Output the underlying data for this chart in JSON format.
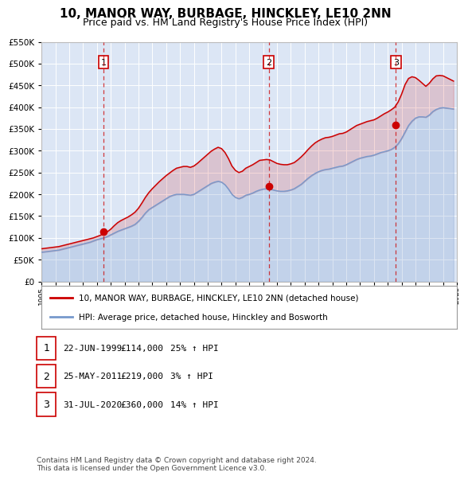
{
  "title": "10, MANOR WAY, BURBAGE, HINCKLEY, LE10 2NN",
  "subtitle": "Price paid vs. HM Land Registry's House Price Index (HPI)",
  "title_fontsize": 11,
  "subtitle_fontsize": 9,
  "bg_color": "#f0f0f0",
  "plot_bg_color": "#dce6f5",
  "grid_color": "#ffffff",
  "red_color": "#cc0000",
  "blue_color": "#7799cc",
  "ylim": [
    0,
    550000
  ],
  "yticks": [
    0,
    50000,
    100000,
    150000,
    200000,
    250000,
    300000,
    350000,
    400000,
    450000,
    500000,
    550000
  ],
  "sale_dates": [
    1999.47,
    2011.4,
    2020.58
  ],
  "sale_prices": [
    114000,
    219000,
    360000
  ],
  "sale_labels": [
    "1",
    "2",
    "3"
  ],
  "legend_entries": [
    "10, MANOR WAY, BURBAGE, HINCKLEY, LE10 2NN (detached house)",
    "HPI: Average price, detached house, Hinckley and Bosworth"
  ],
  "table_rows": [
    {
      "num": "1",
      "date": "22-JUN-1999",
      "price": "£114,000",
      "change": "25% ↑ HPI"
    },
    {
      "num": "2",
      "date": "25-MAY-2011",
      "price": "£219,000",
      "change": "3% ↑ HPI"
    },
    {
      "num": "3",
      "date": "31-JUL-2020",
      "price": "£360,000",
      "change": "14% ↑ HPI"
    }
  ],
  "footnote": "Contains HM Land Registry data © Crown copyright and database right 2024.\nThis data is licensed under the Open Government Licence v3.0.",
  "hpi_years": [
    1995.0,
    1995.25,
    1995.5,
    1995.75,
    1996.0,
    1996.25,
    1996.5,
    1996.75,
    1997.0,
    1997.25,
    1997.5,
    1997.75,
    1998.0,
    1998.25,
    1998.5,
    1998.75,
    1999.0,
    1999.25,
    1999.5,
    1999.75,
    2000.0,
    2000.25,
    2000.5,
    2000.75,
    2001.0,
    2001.25,
    2001.5,
    2001.75,
    2002.0,
    2002.25,
    2002.5,
    2002.75,
    2003.0,
    2003.25,
    2003.5,
    2003.75,
    2004.0,
    2004.25,
    2004.5,
    2004.75,
    2005.0,
    2005.25,
    2005.5,
    2005.75,
    2006.0,
    2006.25,
    2006.5,
    2006.75,
    2007.0,
    2007.25,
    2007.5,
    2007.75,
    2008.0,
    2008.25,
    2008.5,
    2008.75,
    2009.0,
    2009.25,
    2009.5,
    2009.75,
    2010.0,
    2010.25,
    2010.5,
    2010.75,
    2011.0,
    2011.25,
    2011.5,
    2011.75,
    2012.0,
    2012.25,
    2012.5,
    2012.75,
    2013.0,
    2013.25,
    2013.5,
    2013.75,
    2014.0,
    2014.25,
    2014.5,
    2014.75,
    2015.0,
    2015.25,
    2015.5,
    2015.75,
    2016.0,
    2016.25,
    2016.5,
    2016.75,
    2017.0,
    2017.25,
    2017.5,
    2017.75,
    2018.0,
    2018.25,
    2018.5,
    2018.75,
    2019.0,
    2019.25,
    2019.5,
    2019.75,
    2020.0,
    2020.25,
    2020.5,
    2020.75,
    2021.0,
    2021.25,
    2021.5,
    2021.75,
    2022.0,
    2022.25,
    2022.5,
    2022.75,
    2023.0,
    2023.25,
    2023.5,
    2023.75,
    2024.0,
    2024.25,
    2024.5,
    2024.75
  ],
  "hpi_values": [
    67000,
    68000,
    69000,
    70000,
    71000,
    72000,
    74000,
    76000,
    78000,
    80000,
    82000,
    84000,
    86000,
    88000,
    90000,
    93000,
    96000,
    98000,
    100000,
    103000,
    107000,
    111000,
    115000,
    118000,
    121000,
    124000,
    127000,
    131000,
    138000,
    147000,
    157000,
    165000,
    170000,
    175000,
    180000,
    185000,
    190000,
    195000,
    198000,
    200000,
    200000,
    200000,
    199000,
    198000,
    200000,
    205000,
    210000,
    215000,
    220000,
    225000,
    228000,
    230000,
    228000,
    222000,
    212000,
    200000,
    193000,
    190000,
    193000,
    198000,
    200000,
    203000,
    207000,
    210000,
    212000,
    213000,
    212000,
    210000,
    208000,
    207000,
    207000,
    208000,
    210000,
    213000,
    218000,
    223000,
    230000,
    237000,
    243000,
    248000,
    252000,
    255000,
    257000,
    258000,
    260000,
    262000,
    264000,
    265000,
    268000,
    272000,
    276000,
    280000,
    283000,
    285000,
    287000,
    288000,
    290000,
    293000,
    296000,
    298000,
    300000,
    303000,
    308000,
    316000,
    328000,
    343000,
    358000,
    368000,
    375000,
    378000,
    378000,
    377000,
    382000,
    390000,
    395000,
    398000,
    399000,
    398000,
    397000,
    396000
  ],
  "price_years": [
    1995.0,
    1995.25,
    1995.5,
    1995.75,
    1996.0,
    1996.25,
    1996.5,
    1996.75,
    1997.0,
    1997.25,
    1997.5,
    1997.75,
    1998.0,
    1998.25,
    1998.5,
    1998.75,
    1999.0,
    1999.25,
    1999.5,
    1999.75,
    2000.0,
    2000.25,
    2000.5,
    2000.75,
    2001.0,
    2001.25,
    2001.5,
    2001.75,
    2002.0,
    2002.25,
    2002.5,
    2002.75,
    2003.0,
    2003.25,
    2003.5,
    2003.75,
    2004.0,
    2004.25,
    2004.5,
    2004.75,
    2005.0,
    2005.25,
    2005.5,
    2005.75,
    2006.0,
    2006.25,
    2006.5,
    2006.75,
    2007.0,
    2007.25,
    2007.5,
    2007.75,
    2008.0,
    2008.25,
    2008.5,
    2008.75,
    2009.0,
    2009.25,
    2009.5,
    2009.75,
    2010.0,
    2010.25,
    2010.5,
    2010.75,
    2011.0,
    2011.25,
    2011.5,
    2011.75,
    2012.0,
    2012.25,
    2012.5,
    2012.75,
    2013.0,
    2013.25,
    2013.5,
    2013.75,
    2014.0,
    2014.25,
    2014.5,
    2014.75,
    2015.0,
    2015.25,
    2015.5,
    2015.75,
    2016.0,
    2016.25,
    2016.5,
    2016.75,
    2017.0,
    2017.25,
    2017.5,
    2017.75,
    2018.0,
    2018.25,
    2018.5,
    2018.75,
    2019.0,
    2019.25,
    2019.5,
    2019.75,
    2020.0,
    2020.25,
    2020.5,
    2020.75,
    2021.0,
    2021.25,
    2021.5,
    2021.75,
    2022.0,
    2022.25,
    2022.5,
    2022.75,
    2023.0,
    2023.25,
    2023.5,
    2023.75,
    2024.0,
    2024.25,
    2024.5,
    2024.75
  ],
  "price_values": [
    75000,
    76000,
    77000,
    78000,
    79000,
    80000,
    82000,
    84000,
    86000,
    88000,
    90000,
    92000,
    94000,
    96000,
    98000,
    100000,
    103000,
    106000,
    110000,
    114000,
    120000,
    128000,
    135000,
    140000,
    144000,
    148000,
    153000,
    159000,
    168000,
    180000,
    193000,
    204000,
    213000,
    221000,
    229000,
    236000,
    243000,
    249000,
    255000,
    260000,
    262000,
    264000,
    264000,
    262000,
    265000,
    271000,
    278000,
    285000,
    292000,
    299000,
    304000,
    308000,
    305000,
    296000,
    282000,
    265000,
    255000,
    250000,
    253000,
    260000,
    264000,
    268000,
    273000,
    278000,
    279000,
    280000,
    279000,
    275000,
    271000,
    269000,
    268000,
    268000,
    270000,
    273000,
    279000,
    286000,
    294000,
    303000,
    311000,
    318000,
    323000,
    327000,
    330000,
    331000,
    333000,
    336000,
    339000,
    340000,
    343000,
    348000,
    353000,
    358000,
    361000,
    364000,
    367000,
    369000,
    371000,
    375000,
    380000,
    385000,
    389000,
    394000,
    400000,
    412000,
    430000,
    452000,
    466000,
    470000,
    468000,
    462000,
    455000,
    448000,
    455000,
    465000,
    472000,
    473000,
    472000,
    468000,
    464000,
    460000
  ]
}
